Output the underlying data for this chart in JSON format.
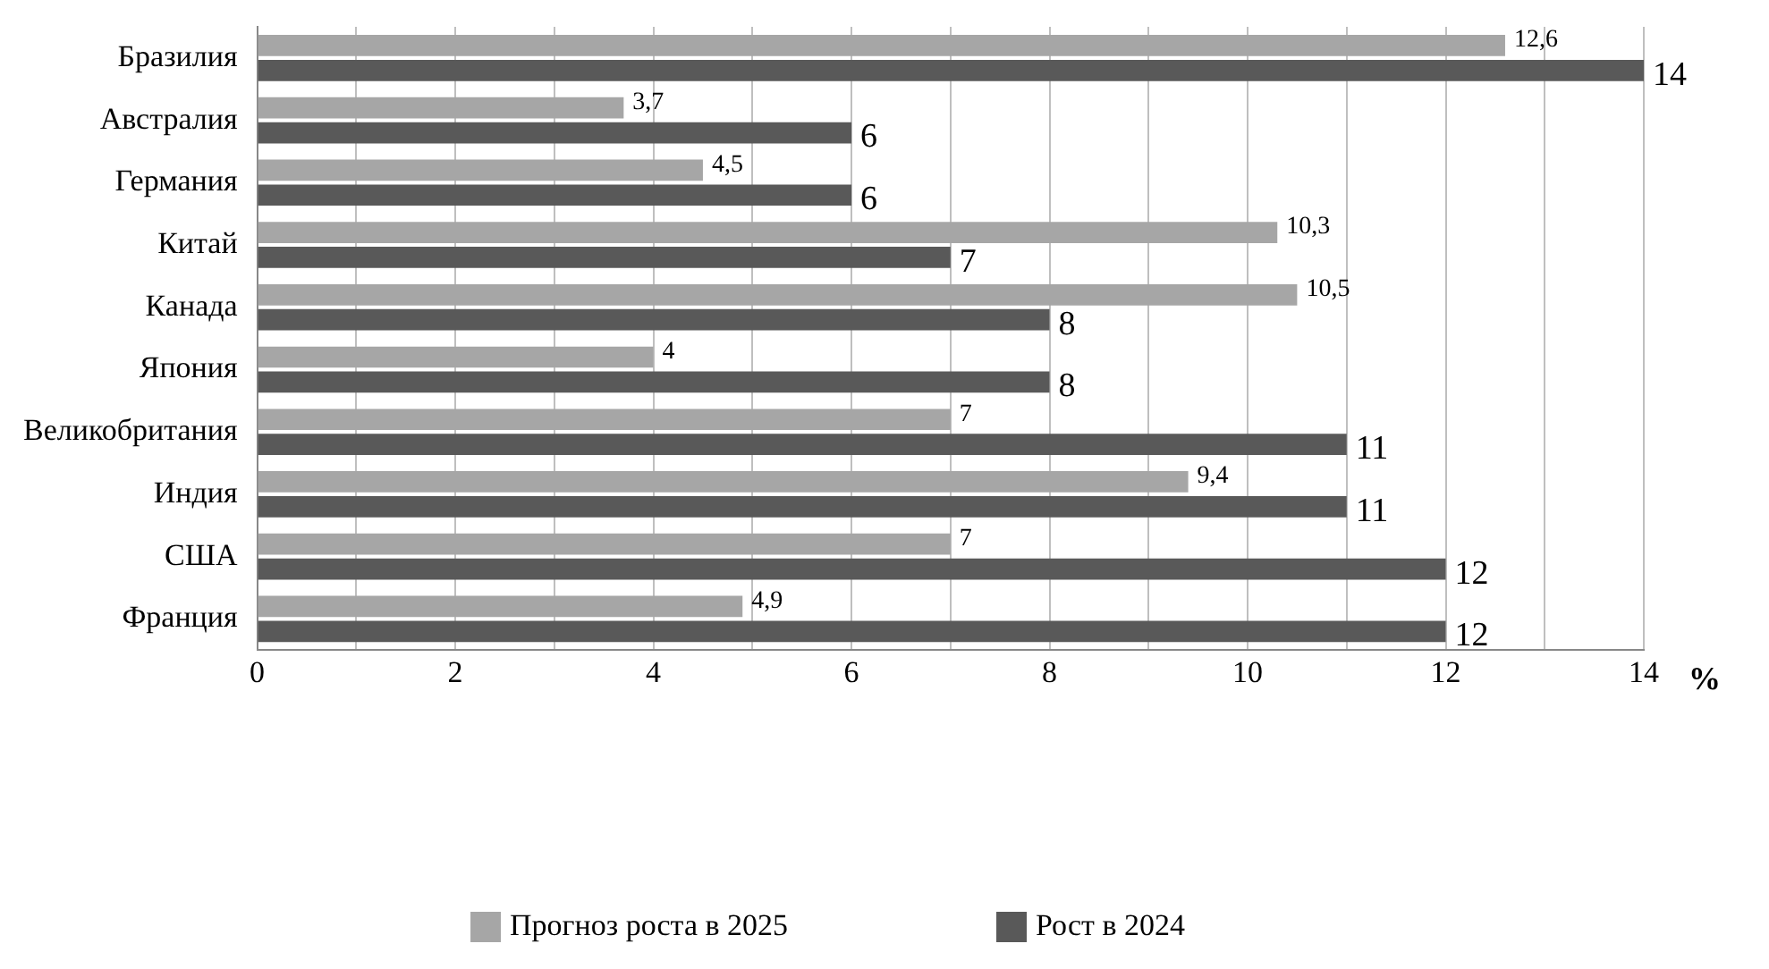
{
  "chart_data": {
    "type": "bar",
    "orientation": "horizontal",
    "xlabel": "%",
    "categories": [
      "Бразилия",
      "Австралия",
      "Германия",
      "Китай",
      "Канада",
      "Япония",
      "Великобритания",
      "Индия",
      "США",
      "Франция"
    ],
    "series": [
      {
        "name": "Прогноз роста в 2025",
        "color": "#a6a6a6",
        "values": [
          12.6,
          3.7,
          4.5,
          10.3,
          10.5,
          4,
          7,
          9.4,
          7,
          4.9
        ],
        "value_labels": [
          "12,6",
          "3,7",
          "4,5",
          "10,3",
          "10,5",
          "4",
          "7",
          "9,4",
          "7",
          "4,9"
        ]
      },
      {
        "name": "Рост в 2024",
        "color": "#595959",
        "values": [
          14,
          6,
          6,
          7,
          8,
          8,
          11,
          11,
          12,
          12
        ],
        "value_labels": [
          "14",
          "6",
          "6",
          "7",
          "8",
          "8",
          "11",
          "11",
          "12",
          "12"
        ]
      }
    ],
    "xlim": [
      0,
      14
    ],
    "xticks": [
      0,
      {
        "value": 1,
        "label": null
      },
      2,
      {
        "value": 3,
        "label": null
      },
      4,
      {
        "value": 5,
        "label": null
      },
      6,
      {
        "value": 7,
        "label": null
      },
      8,
      {
        "value": 9,
        "label": null
      },
      10,
      {
        "value": 11,
        "label": null
      },
      12,
      {
        "value": 13,
        "label": null
      },
      14
    ],
    "grid": "x",
    "legend": "bottom"
  }
}
